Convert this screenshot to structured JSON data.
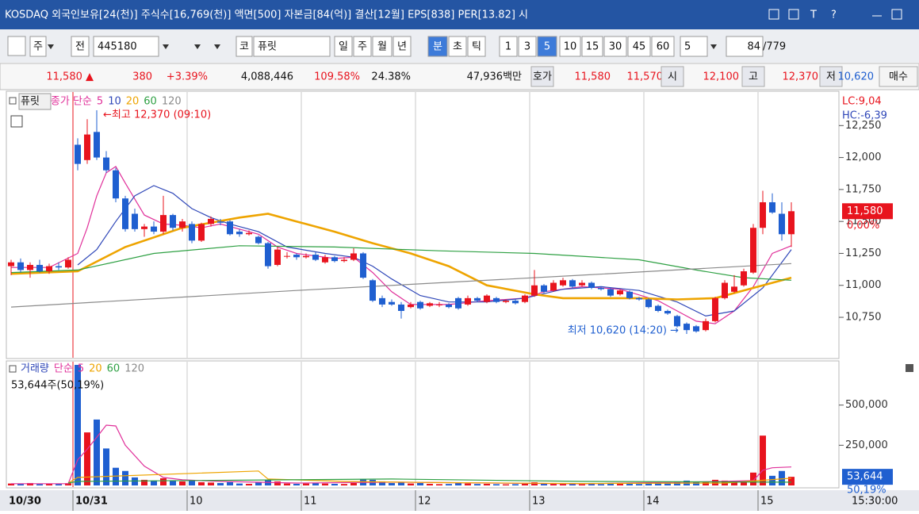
{
  "header": {
    "title": "KOSDAQ 외국인보유[24(천)] 주식수[16,769(천)] 액면[500] 자본금[84(억)] 결산[12월] EPS[838] PER[13.82] 시",
    "buttons": [
      "T",
      "?"
    ]
  },
  "toolbar": {
    "items": [
      "주",
      "전",
      "445180",
      "코",
      "퓨릿",
      "일",
      "주",
      "월",
      "년",
      "분",
      "초",
      "틱",
      "1",
      "3",
      "5",
      "10",
      "15",
      "30",
      "45",
      "60",
      "5",
      "84",
      "/779"
    ]
  },
  "info": {
    "items": [
      "11,580 ▲",
      "380",
      "+3.39%",
      "4,088,446",
      "109.58%",
      "24.38%",
      "47,936백만",
      "호가",
      "11,580",
      "11,570",
      "시",
      "12,100",
      "고",
      "12,370",
      "저",
      "10,620",
      "매수"
    ]
  },
  "chart_data": [
    {
      "type": "candlestick",
      "title": "퓨릿",
      "legend_title": "종가 단순",
      "up_color": "#e8141e",
      "down_color": "#1f5fd0",
      "xlim": [
        -0.5,
        87
      ],
      "xticks": [
        {
          "value": 0,
          "label": "10/30"
        },
        {
          "value": 7,
          "label": "10/31"
        },
        {
          "value": 19,
          "label": "10"
        },
        {
          "value": 31,
          "label": "11"
        },
        {
          "value": 43,
          "label": "12"
        },
        {
          "value": 55,
          "label": "13"
        },
        {
          "value": 67,
          "label": "14"
        },
        {
          "value": 79,
          "label": "15"
        }
      ],
      "ylim": [
        10440,
        12500
      ],
      "yticks": [
        {
          "value": 10750,
          "label": "10,750"
        },
        {
          "value": 11000,
          "label": "11,000"
        },
        {
          "value": 11250,
          "label": "11,250"
        },
        {
          "value": 11500,
          "label": "11,500"
        },
        {
          "value": 11750,
          "label": "11,750"
        },
        {
          "value": 12000,
          "label": "12,000"
        },
        {
          "value": 12250,
          "label": "12,250"
        }
      ],
      "open": [
        11150,
        11180,
        11120,
        11160,
        11110,
        11150,
        11140,
        12100,
        11980,
        12200,
        12000,
        11900,
        11680,
        11560,
        11440,
        11460,
        11420,
        11550,
        11450,
        11480,
        11350,
        11480,
        11500,
        11500,
        11420,
        11400,
        11380,
        11330,
        11160,
        11230,
        11240,
        11220,
        11240,
        11180,
        11220,
        11190,
        11200,
        11250,
        11040,
        10900,
        10870,
        10850,
        10830,
        10870,
        10840,
        10850,
        10850,
        10900,
        10850,
        10900,
        10870,
        10900,
        10870,
        10880,
        10870,
        10920,
        11000,
        10960,
        11000,
        11040,
        11000,
        11020,
        10980,
        10970,
        10930,
        10950,
        10900,
        10890,
        10840,
        10800,
        10760,
        10700,
        10680,
        10650,
        10720,
        10900,
        10950,
        11000,
        11100,
        11450,
        11650,
        11560,
        11400
      ],
      "high": [
        11200,
        11210,
        11180,
        11200,
        11170,
        11180,
        11220,
        12150,
        12300,
        12370,
        12050,
        11920,
        11700,
        11600,
        11480,
        11500,
        11700,
        11560,
        11520,
        11500,
        11490,
        11540,
        11520,
        11510,
        11440,
        11430,
        11390,
        11340,
        11300,
        11260,
        11250,
        11250,
        11260,
        11240,
        11230,
        11220,
        11290,
        11260,
        11050,
        10920,
        10890,
        10870,
        10870,
        10880,
        10870,
        10870,
        10860,
        10910,
        10920,
        10910,
        10930,
        10910,
        10890,
        10890,
        10930,
        11120,
        11010,
        11040,
        11060,
        11050,
        11040,
        11030,
        10990,
        10980,
        10970,
        10960,
        10910,
        10900,
        10850,
        10810,
        10770,
        10710,
        10690,
        10740,
        10910,
        11040,
        11080,
        11130,
        11480,
        11740,
        11720,
        11650,
        11650
      ],
      "low": [
        11080,
        11100,
        11060,
        11100,
        11090,
        11120,
        11130,
        11900,
        11950,
        11980,
        11880,
        11650,
        11420,
        11420,
        11380,
        11400,
        11400,
        11430,
        11420,
        11330,
        11340,
        11460,
        11470,
        11390,
        11380,
        11390,
        11320,
        11130,
        11150,
        11210,
        11200,
        11210,
        11190,
        11170,
        11180,
        11180,
        11190,
        11050,
        10870,
        10830,
        10840,
        10740,
        10820,
        10810,
        10830,
        10830,
        10820,
        10810,
        10840,
        10870,
        10860,
        10860,
        10860,
        10850,
        10860,
        10910,
        10940,
        10950,
        10990,
        10980,
        10990,
        10970,
        10960,
        10910,
        10920,
        10890,
        10880,
        10820,
        10790,
        10770,
        10670,
        10620,
        10630,
        10640,
        10710,
        10890,
        10940,
        10990,
        11090,
        11400,
        11560,
        11350,
        11300
      ],
      "close": [
        11180,
        11120,
        11160,
        11110,
        11150,
        11140,
        11200,
        11950,
        12180,
        12000,
        11900,
        11680,
        11440,
        11440,
        11460,
        11420,
        11550,
        11450,
        11500,
        11350,
        11480,
        11520,
        11490,
        11400,
        11400,
        11410,
        11330,
        11150,
        11280,
        11230,
        11220,
        11230,
        11200,
        11220,
        11190,
        11200,
        11250,
        11060,
        10880,
        10850,
        10850,
        10800,
        10850,
        10820,
        10860,
        10850,
        10830,
        10820,
        10900,
        10880,
        10920,
        10870,
        10880,
        10860,
        10920,
        11000,
        10950,
        11020,
        11040,
        10990,
        11020,
        10980,
        10970,
        10920,
        10960,
        10900,
        10890,
        10830,
        10800,
        10780,
        10680,
        10650,
        10640,
        10720,
        10900,
        11020,
        10990,
        11110,
        11450,
        11650,
        11570,
        11400,
        11580
      ],
      "series": [
        {
          "name": "5",
          "color": "#e0309a",
          "x": [
            0,
            4,
            7,
            8,
            9,
            10,
            11,
            12,
            14,
            16,
            18,
            20,
            22,
            26,
            28,
            30,
            34,
            36,
            38,
            40,
            42,
            46,
            50,
            54,
            56,
            60,
            64,
            68,
            70,
            72,
            74,
            76,
            78,
            80,
            82
          ],
          "values": [
            11140,
            11140,
            11250,
            11450,
            11700,
            11880,
            11930,
            11800,
            11550,
            11480,
            11470,
            11450,
            11480,
            11400,
            11300,
            11250,
            11210,
            11220,
            11100,
            10950,
            10850,
            10850,
            10880,
            10900,
            10950,
            10990,
            10970,
            10880,
            10800,
            10720,
            10700,
            10800,
            10990,
            11250,
            11310
          ]
        },
        {
          "name": "10",
          "color": "#2f47b8",
          "x": [
            7,
            9,
            11,
            13,
            15,
            17,
            19,
            21,
            23,
            26,
            29,
            33,
            36,
            38,
            40,
            43,
            46,
            50,
            54,
            58,
            62,
            66,
            70,
            73,
            76,
            79,
            82
          ],
          "values": [
            11160,
            11280,
            11500,
            11700,
            11780,
            11720,
            11600,
            11530,
            11480,
            11420,
            11300,
            11250,
            11220,
            11150,
            11050,
            10920,
            10870,
            10870,
            10900,
            10970,
            10990,
            10960,
            10870,
            10760,
            10800,
            10980,
            11280
          ]
        },
        {
          "name": "20",
          "color": "#eea400",
          "x": [
            0,
            7,
            12,
            18,
            24,
            27,
            30,
            34,
            38,
            42,
            46,
            50,
            55,
            58,
            62,
            66,
            70,
            74,
            78,
            82
          ],
          "values": [
            11090,
            11110,
            11300,
            11450,
            11530,
            11560,
            11500,
            11420,
            11330,
            11250,
            11150,
            11000,
            10930,
            10900,
            10900,
            10900,
            10890,
            10900,
            10980,
            11060
          ]
        },
        {
          "name": "60",
          "color": "#2ea043",
          "x": [
            0,
            7,
            15,
            24,
            34,
            45,
            55,
            66,
            72,
            77,
            82
          ],
          "values": [
            11100,
            11120,
            11250,
            11310,
            11300,
            11270,
            11250,
            11200,
            11120,
            11060,
            11040
          ]
        },
        {
          "name": "120",
          "color": "#8a8a8a",
          "x": [
            0,
            30,
            60,
            82
          ],
          "values": [
            10830,
            10960,
            11080,
            11170
          ]
        }
      ],
      "annotations": [
        {
          "text": "←최고 12,370 (09:10)",
          "x": 9,
          "y": 12370,
          "color": "#e8141e"
        },
        {
          "text": "최저 10,620 (14:20) →",
          "x": 71,
          "y": 10620,
          "color": "#1f5fd0"
        }
      ],
      "side_labels": [
        "LC:9,04",
        "HC:-6,39"
      ],
      "price_tag": {
        "value": 11580,
        "label": "11,580"
      },
      "change_label": "0,00%"
    },
    {
      "type": "volume",
      "title": "거래량",
      "legend_title": "단순",
      "summary": "53,644주(50,19%)",
      "xlim": [
        -0.5,
        87
      ],
      "ylim": [
        0,
        760000
      ],
      "yticks": [
        {
          "value": 250000,
          "label": "250,000"
        },
        {
          "value": 500000,
          "label": "500,000"
        }
      ],
      "values": [
        12000,
        9000,
        15000,
        8000,
        10000,
        9000,
        14000,
        750000,
        330000,
        410000,
        230000,
        110000,
        90000,
        50000,
        35000,
        30000,
        45000,
        30000,
        25000,
        30000,
        20000,
        18000,
        15000,
        20000,
        12000,
        10000,
        20000,
        35000,
        25000,
        12000,
        10000,
        12000,
        15000,
        12000,
        10000,
        9000,
        15000,
        40000,
        35000,
        25000,
        15000,
        20000,
        12000,
        15000,
        10000,
        8000,
        9000,
        15000,
        12000,
        9000,
        10000,
        8000,
        7000,
        8000,
        10000,
        20000,
        12000,
        15000,
        10000,
        8000,
        7000,
        10000,
        8000,
        12000,
        10000,
        12000,
        9000,
        20000,
        15000,
        12000,
        25000,
        30000,
        20000,
        25000,
        35000,
        30000,
        20000,
        25000,
        80000,
        310000,
        60000,
        90000,
        53644
      ],
      "series": [
        {
          "name": "5",
          "color": "#e0309a",
          "x": [
            0,
            6,
            7,
            8,
            9,
            10,
            11,
            12,
            14,
            16,
            18,
            22,
            30,
            40,
            60,
            75,
            78,
            79,
            80,
            82
          ],
          "values": [
            11000,
            11000,
            160000,
            225000,
            300000,
            375000,
            370000,
            250000,
            120000,
            50000,
            35000,
            25000,
            15000,
            20000,
            10000,
            25000,
            30000,
            95000,
            110000,
            115000
          ]
        },
        {
          "name": "20",
          "color": "#eea400",
          "x": [
            6,
            7,
            26,
            27,
            35,
            45,
            60,
            75,
            82
          ],
          "values": [
            15000,
            50000,
            90000,
            40000,
            25000,
            18000,
            12000,
            15000,
            45000
          ]
        },
        {
          "name": "60",
          "color": "#2ea043",
          "x": [
            6,
            7,
            40,
            60,
            82
          ],
          "values": [
            15000,
            25000,
            40000,
            25000,
            20000
          ]
        },
        {
          "name": "120",
          "color": "#8a8a8a",
          "x": [],
          "values": []
        }
      ],
      "volume_tag": {
        "value": 53644,
        "label": "53,644"
      },
      "ratio_label": "50,19%",
      "time_label": "15:30:00"
    }
  ]
}
